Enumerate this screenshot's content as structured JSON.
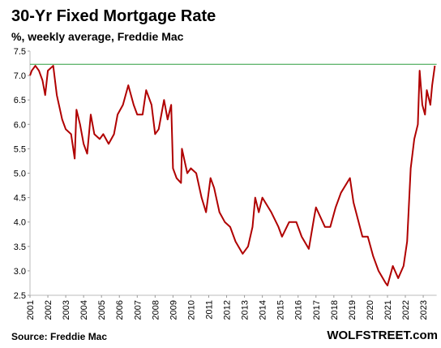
{
  "chart_data": {
    "type": "line",
    "title": "30-Yr Fixed Mortgage Rate",
    "subtitle": "%, weekly average, Freddie Mac",
    "source": "Source: Freddie Mac",
    "brand": "WOLFSTREET.com",
    "color": "#b00000",
    "reference_line": 7.23,
    "reference_color": "#2e9e3e",
    "x": [
      2001.0,
      2001.1,
      2001.3,
      2001.5,
      2001.7,
      2001.85,
      2002.0,
      2002.3,
      2002.5,
      2002.8,
      2003.0,
      2003.3,
      2003.5,
      2003.6,
      2003.8,
      2004.0,
      2004.2,
      2004.4,
      2004.6,
      2004.9,
      2005.1,
      2005.4,
      2005.7,
      2005.9,
      2006.2,
      2006.5,
      2006.8,
      2007.0,
      2007.3,
      2007.5,
      2007.8,
      2008.0,
      2008.2,
      2008.5,
      2008.7,
      2008.9,
      2009.0,
      2009.2,
      2009.45,
      2009.5,
      2009.8,
      2010.0,
      2010.3,
      2010.6,
      2010.85,
      2011.1,
      2011.3,
      2011.6,
      2011.9,
      2012.2,
      2012.5,
      2012.9,
      2013.2,
      2013.45,
      2013.6,
      2013.8,
      2014.0,
      2014.5,
      2014.9,
      2015.1,
      2015.5,
      2015.9,
      2016.2,
      2016.6,
      2016.9,
      2017.0,
      2017.5,
      2017.8,
      2018.1,
      2018.4,
      2018.9,
      2019.1,
      2019.6,
      2019.9,
      2020.2,
      2020.5,
      2020.9,
      2021.0,
      2021.3,
      2021.6,
      2021.9,
      2022.1,
      2022.3,
      2022.5,
      2022.7,
      2022.8,
      2022.95,
      2023.1,
      2023.2,
      2023.4,
      2023.5,
      2023.65
    ],
    "values": [
      7.0,
      7.1,
      7.2,
      7.1,
      6.9,
      6.6,
      7.1,
      7.2,
      6.6,
      6.1,
      5.9,
      5.8,
      5.3,
      6.3,
      6.0,
      5.6,
      5.4,
      6.2,
      5.8,
      5.7,
      5.8,
      5.6,
      5.8,
      6.2,
      6.4,
      6.8,
      6.4,
      6.2,
      6.2,
      6.7,
      6.4,
      5.8,
      5.9,
      6.5,
      6.1,
      6.4,
      5.1,
      4.9,
      4.8,
      5.5,
      5.0,
      5.1,
      5.0,
      4.5,
      4.2,
      4.9,
      4.7,
      4.2,
      4.0,
      3.9,
      3.6,
      3.35,
      3.5,
      3.9,
      4.5,
      4.2,
      4.5,
      4.2,
      3.9,
      3.7,
      4.0,
      4.0,
      3.7,
      3.45,
      4.1,
      4.3,
      3.9,
      3.9,
      4.3,
      4.6,
      4.9,
      4.4,
      3.7,
      3.7,
      3.3,
      3.0,
      2.75,
      2.7,
      3.1,
      2.85,
      3.1,
      3.6,
      5.1,
      5.7,
      6.0,
      7.1,
      6.4,
      6.2,
      6.7,
      6.4,
      6.8,
      7.2
    ],
    "xlim": [
      2001,
      2023.75
    ],
    "xticks": [
      2001,
      2002,
      2003,
      2004,
      2005,
      2006,
      2007,
      2008,
      2009,
      2010,
      2011,
      2012,
      2013,
      2014,
      2015,
      2016,
      2017,
      2018,
      2019,
      2020,
      2021,
      2022,
      2023
    ],
    "ylim": [
      2.5,
      7.5
    ],
    "yticks": [
      2.5,
      {
        "value": 3,
        "label": "3.0"
      },
      3.5,
      {
        "value": 4,
        "label": "4.0"
      },
      4.5,
      {
        "value": 5,
        "label": "5.0"
      },
      5.5,
      {
        "value": 6,
        "label": "6.0"
      },
      6.5,
      {
        "value": 7,
        "label": "7.0"
      },
      7.5
    ]
  }
}
